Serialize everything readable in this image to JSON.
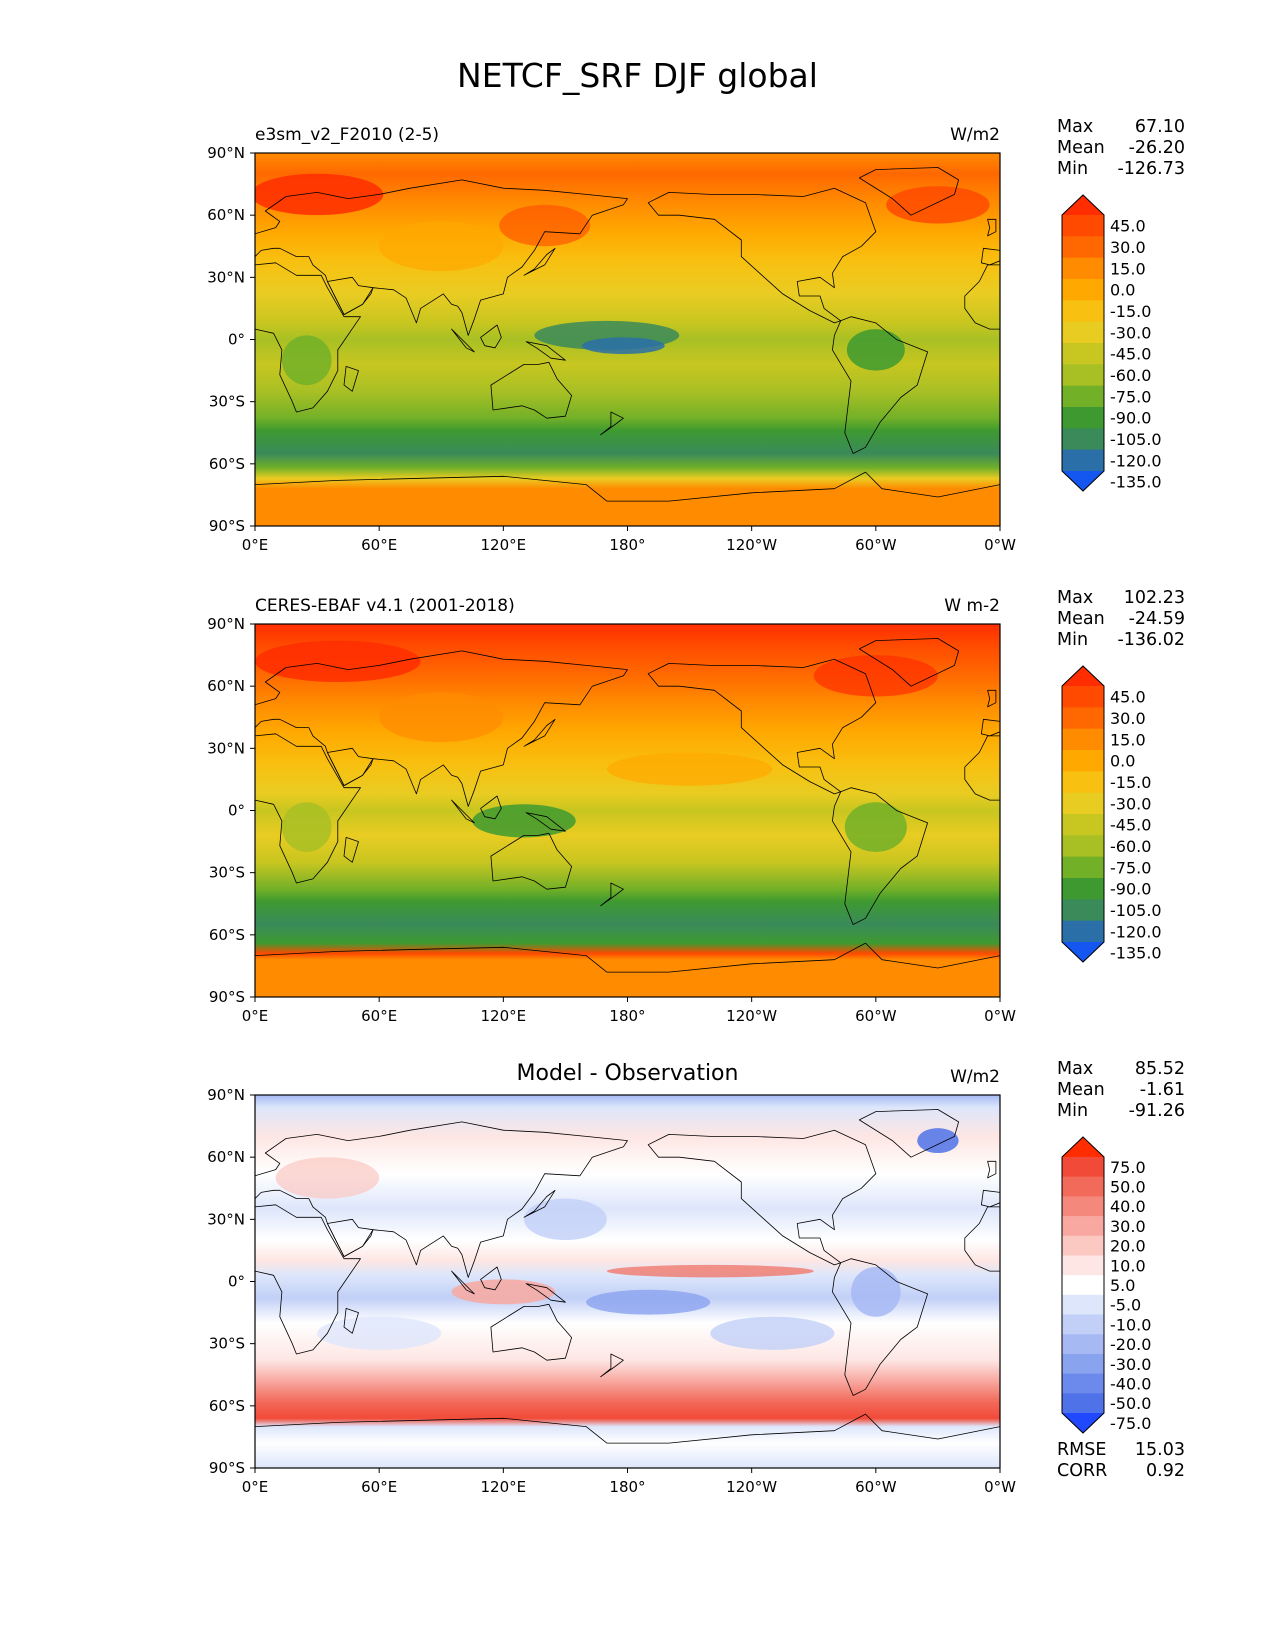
{
  "figure": {
    "title": "NETCF_SRF DJF global"
  },
  "axes": {
    "yticks": [
      "90°N",
      "60°N",
      "30°N",
      "0°",
      "30°S",
      "60°S",
      "90°S"
    ],
    "xticks": [
      "0°E",
      "60°E",
      "120°E",
      "180°",
      "120°W",
      "60°W",
      "0°W"
    ]
  },
  "panels": [
    {
      "id": "model",
      "title_left": "e3sm_v2_F2010 (2-5)",
      "title_center": "",
      "units": "W/m2",
      "stats": [
        {
          "label": "Max",
          "value": "67.10"
        },
        {
          "label": "Mean",
          "value": "-26.20"
        },
        {
          "label": "Min",
          "value": "-126.73"
        }
      ],
      "extra_stats": [],
      "colorbar": {
        "labels": [
          "45.0",
          "30.0",
          "15.0",
          "0.0",
          "-15.0",
          "-30.0",
          "-45.0",
          "-60.0",
          "-75.0",
          "-90.0",
          "-105.0",
          "-120.0",
          "-135.0"
        ],
        "colors": [
          "#ff2d00",
          "#ff4a00",
          "#ff6800",
          "#ff8b00",
          "#ffa800",
          "#f8c010",
          "#e9cc22",
          "#c8c620",
          "#a8c024",
          "#72b028",
          "#3e9a30",
          "#3a8a5a",
          "#2a6fa8",
          "#1456f0"
        ]
      }
    },
    {
      "id": "obs",
      "title_left": "CERES-EBAF v4.1 (2001-2018)",
      "title_center": "",
      "units": "W m-2",
      "stats": [
        {
          "label": "Max",
          "value": "102.23"
        },
        {
          "label": "Mean",
          "value": "-24.59"
        },
        {
          "label": "Min",
          "value": "-136.02"
        }
      ],
      "extra_stats": [],
      "colorbar": {
        "labels": [
          "45.0",
          "30.0",
          "15.0",
          "0.0",
          "-15.0",
          "-30.0",
          "-45.0",
          "-60.0",
          "-75.0",
          "-90.0",
          "-105.0",
          "-120.0",
          "-135.0"
        ],
        "colors": [
          "#ff2d00",
          "#ff4a00",
          "#ff6800",
          "#ff8b00",
          "#ffa800",
          "#f8c010",
          "#e9cc22",
          "#c8c620",
          "#a8c024",
          "#72b028",
          "#3e9a30",
          "#3a8a5a",
          "#2a6fa8",
          "#1456f0"
        ]
      }
    },
    {
      "id": "diff",
      "title_left": "",
      "title_center": "Model - Observation",
      "units": "W/m2",
      "stats": [
        {
          "label": "Max",
          "value": "85.52"
        },
        {
          "label": "Mean",
          "value": "-1.61"
        },
        {
          "label": "Min",
          "value": "-91.26"
        }
      ],
      "extra_stats": [
        {
          "label": "RMSE",
          "value": "15.03"
        },
        {
          "label": "CORR",
          "value": "0.92"
        }
      ],
      "colorbar": {
        "labels": [
          "75.0",
          "50.0",
          "40.0",
          "30.0",
          "20.0",
          "10.0",
          "5.0",
          "-5.0",
          "-10.0",
          "-20.0",
          "-30.0",
          "-40.0",
          "-50.0",
          "-75.0"
        ],
        "colors": [
          "#ff2d00",
          "#f24a38",
          "#f26a5a",
          "#f5887c",
          "#f8a8a0",
          "#fbc8c2",
          "#fde6e3",
          "#ffffff",
          "#dde6fb",
          "#c2d0f7",
          "#a6b9f3",
          "#8aa3ef",
          "#6c8aeb",
          "#4f72e8",
          "#1f48ff"
        ]
      }
    }
  ]
}
